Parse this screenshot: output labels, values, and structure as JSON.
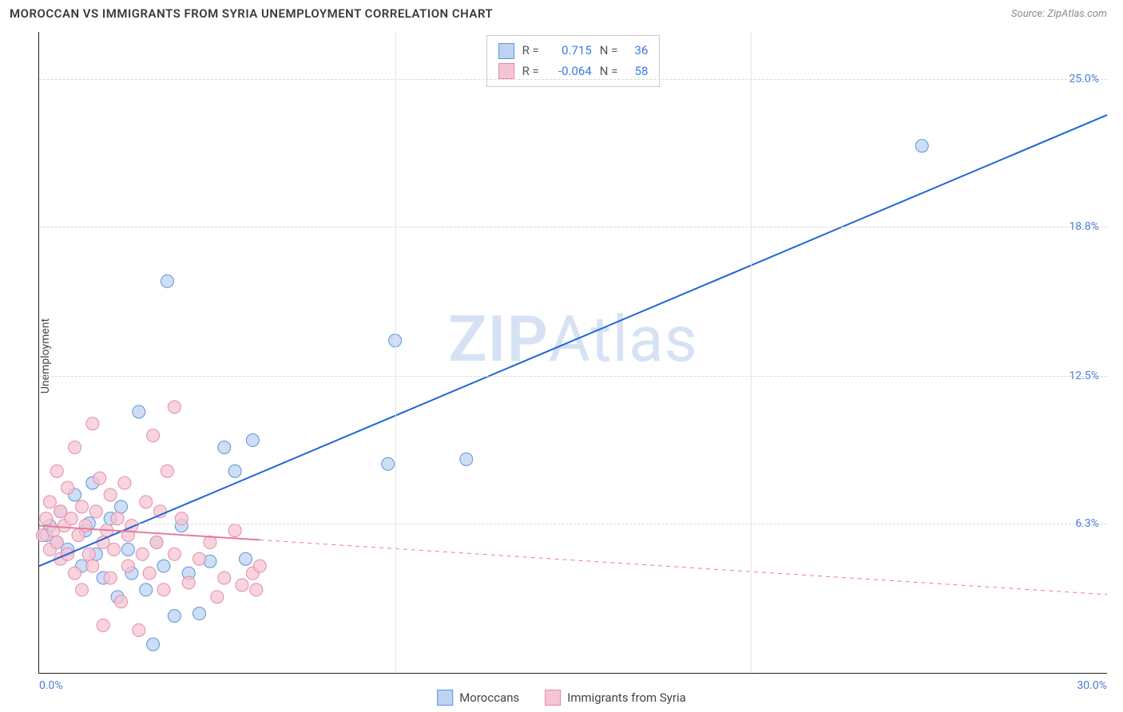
{
  "header": {
    "title": "MOROCCAN VS IMMIGRANTS FROM SYRIA UNEMPLOYMENT CORRELATION CHART",
    "source": "Source: ZipAtlas.com"
  },
  "chart": {
    "type": "scatter",
    "y_label": "Unemployment",
    "watermark": "ZIPAtlas",
    "background_color": "#ffffff",
    "grid_color": "#d8d8d8",
    "axis_color": "#222222",
    "tick_label_color": "#4a7fd8",
    "xlim": [
      0,
      30
    ],
    "ylim": [
      0,
      27
    ],
    "x_ticks": [
      {
        "pos": 0.0,
        "label": "0.0%",
        "align": "left"
      },
      {
        "pos": 10.0,
        "label": "",
        "align": "mid"
      },
      {
        "pos": 20.0,
        "label": "",
        "align": "mid"
      },
      {
        "pos": 30.0,
        "label": "30.0%",
        "align": "right"
      }
    ],
    "y_ticks": [
      {
        "pos": 6.3,
        "label": "6.3%"
      },
      {
        "pos": 12.5,
        "label": "12.5%"
      },
      {
        "pos": 18.8,
        "label": "18.8%"
      },
      {
        "pos": 25.0,
        "label": "25.0%"
      }
    ],
    "series": [
      {
        "name": "Moroccans",
        "fill": "#bcd3f2",
        "stroke": "#5e93db",
        "line_color": "#1f66d6",
        "line_width": 2,
        "marker_radius": 8,
        "R": "0.715",
        "N": "36",
        "trend": {
          "x1": 0,
          "y1": 4.5,
          "x2": 30,
          "y2": 23.5,
          "solid_until_x": 30
        },
        "points": [
          [
            0.2,
            5.8
          ],
          [
            0.3,
            6.2
          ],
          [
            0.5,
            5.5
          ],
          [
            0.6,
            6.8
          ],
          [
            0.8,
            5.2
          ],
          [
            1.0,
            7.5
          ],
          [
            1.2,
            4.5
          ],
          [
            1.3,
            6.0
          ],
          [
            1.5,
            8.0
          ],
          [
            1.6,
            5.0
          ],
          [
            1.8,
            4.0
          ],
          [
            2.0,
            6.5
          ],
          [
            2.2,
            3.2
          ],
          [
            2.3,
            7.0
          ],
          [
            2.5,
            5.2
          ],
          [
            2.6,
            4.2
          ],
          [
            2.8,
            11.0
          ],
          [
            3.0,
            3.5
          ],
          [
            3.2,
            1.2
          ],
          [
            3.3,
            5.5
          ],
          [
            3.5,
            4.5
          ],
          [
            3.6,
            16.5
          ],
          [
            3.8,
            2.4
          ],
          [
            4.0,
            6.2
          ],
          [
            4.2,
            4.2
          ],
          [
            4.5,
            2.5
          ],
          [
            4.8,
            4.7
          ],
          [
            5.2,
            9.5
          ],
          [
            5.5,
            8.5
          ],
          [
            5.8,
            4.8
          ],
          [
            6.0,
            9.8
          ],
          [
            10.0,
            14.0
          ],
          [
            12.0,
            9.0
          ],
          [
            9.8,
            8.8
          ],
          [
            24.8,
            22.2
          ],
          [
            1.4,
            6.3
          ]
        ]
      },
      {
        "name": "Immigrants from Syria",
        "fill": "#f6c5d3",
        "stroke": "#e78aa8",
        "line_color": "#e57ca0",
        "line_width": 2,
        "marker_radius": 8,
        "R": "-0.064",
        "N": "58",
        "trend": {
          "x1": 0,
          "y1": 6.2,
          "x2": 30,
          "y2": 3.3,
          "solid_until_x": 6.2
        },
        "points": [
          [
            0.1,
            5.8
          ],
          [
            0.2,
            6.5
          ],
          [
            0.3,
            5.2
          ],
          [
            0.3,
            7.2
          ],
          [
            0.4,
            6.0
          ],
          [
            0.5,
            5.5
          ],
          [
            0.5,
            8.5
          ],
          [
            0.6,
            6.8
          ],
          [
            0.6,
            4.8
          ],
          [
            0.7,
            6.2
          ],
          [
            0.8,
            5.0
          ],
          [
            0.8,
            7.8
          ],
          [
            0.9,
            6.5
          ],
          [
            1.0,
            4.2
          ],
          [
            1.0,
            9.5
          ],
          [
            1.1,
            5.8
          ],
          [
            1.2,
            7.0
          ],
          [
            1.2,
            3.5
          ],
          [
            1.3,
            6.2
          ],
          [
            1.4,
            5.0
          ],
          [
            1.5,
            10.5
          ],
          [
            1.5,
            4.5
          ],
          [
            1.6,
            6.8
          ],
          [
            1.7,
            8.2
          ],
          [
            1.8,
            5.5
          ],
          [
            1.8,
            2.0
          ],
          [
            1.9,
            6.0
          ],
          [
            2.0,
            7.5
          ],
          [
            2.0,
            4.0
          ],
          [
            2.1,
            5.2
          ],
          [
            2.2,
            6.5
          ],
          [
            2.3,
            3.0
          ],
          [
            2.4,
            8.0
          ],
          [
            2.5,
            5.8
          ],
          [
            2.5,
            4.5
          ],
          [
            2.6,
            6.2
          ],
          [
            2.8,
            1.8
          ],
          [
            2.9,
            5.0
          ],
          [
            3.0,
            7.2
          ],
          [
            3.1,
            4.2
          ],
          [
            3.2,
            10.0
          ],
          [
            3.3,
            5.5
          ],
          [
            3.4,
            6.8
          ],
          [
            3.5,
            3.5
          ],
          [
            3.6,
            8.5
          ],
          [
            3.8,
            11.2
          ],
          [
            3.8,
            5.0
          ],
          [
            4.0,
            6.5
          ],
          [
            4.2,
            3.8
          ],
          [
            4.5,
            4.8
          ],
          [
            4.8,
            5.5
          ],
          [
            5.0,
            3.2
          ],
          [
            5.2,
            4.0
          ],
          [
            5.5,
            6.0
          ],
          [
            5.7,
            3.7
          ],
          [
            6.0,
            4.2
          ],
          [
            6.1,
            3.5
          ],
          [
            6.2,
            4.5
          ]
        ]
      }
    ],
    "stats_box": {
      "border_color": "#c8c8c8",
      "bg": "#ffffff",
      "label_color": "#555555",
      "value_color": "#3d7ae5"
    },
    "legend": {
      "font_size": 15,
      "text_color": "#444444"
    }
  }
}
